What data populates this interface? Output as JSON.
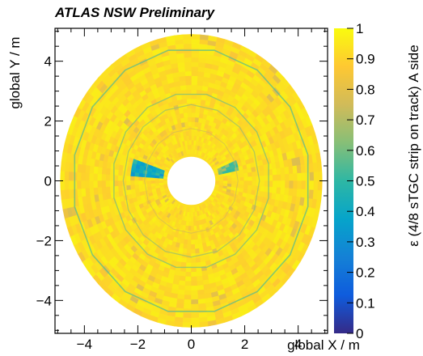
{
  "chart_data": {
    "type": "heatmap",
    "title": "ATLAS NSW Preliminary",
    "xlabel": "global X / m",
    "ylabel": "global Y / m",
    "zlabel": "ε (4/8 sTGC strip on track) A side",
    "xlim": [
      -5.1,
      5.1
    ],
    "ylim": [
      -5.1,
      5.1
    ],
    "zlim": [
      0,
      1
    ],
    "x_ticks": [
      -4,
      -2,
      0,
      2,
      4
    ],
    "y_ticks": [
      -4,
      -2,
      0,
      2,
      4
    ],
    "x_tick_labels": [
      "−4",
      "−2",
      "0",
      "2",
      "4"
    ],
    "y_tick_labels": [
      "−4",
      "−2",
      "0",
      "2",
      "4"
    ],
    "z_ticks": [
      0,
      0.1,
      0.2,
      0.3,
      0.4,
      0.5,
      0.6,
      0.7,
      0.8,
      0.9,
      1
    ],
    "z_tick_labels": [
      "0",
      "0.1",
      "0.2",
      "0.3",
      "0.4",
      "0.5",
      "0.6",
      "0.7",
      "0.8",
      "0.9",
      "1"
    ],
    "colormap": [
      "#352a87",
      "#0f5cdd",
      "#1481d6",
      "#06a4ca",
      "#2eb7a4",
      "#87bf77",
      "#d1bb59",
      "#fec832",
      "#f9fb0e"
    ],
    "detector": {
      "outer_radius_m": 4.9,
      "inner_radius_m": 0.9,
      "typical_efficiency": 0.93,
      "low_efficiency_regions": [
        {
          "r_min_m": 1.0,
          "r_max_m": 2.3,
          "phi_min_deg": 160,
          "phi_max_deg": 175,
          "efficiency": 0.42
        },
        {
          "r_min_m": 1.0,
          "r_max_m": 1.9,
          "phi_min_deg": 10,
          "phi_max_deg": 22,
          "efficiency": 0.6
        }
      ]
    }
  }
}
